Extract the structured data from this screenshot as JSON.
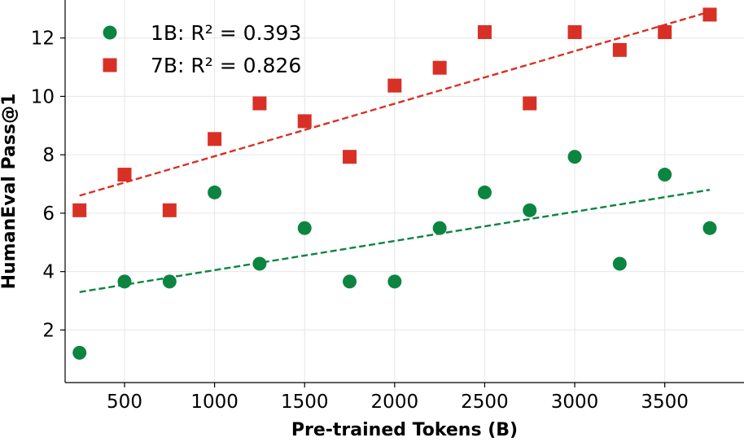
{
  "chart_data": {
    "type": "scatter",
    "title": "",
    "xlabel": "Pre-trained Tokens (B)",
    "ylabel": "HumanEval Pass@1",
    "xlim": [
      170,
      3940
    ],
    "ylim": [
      0.2,
      13.3
    ],
    "xticks": [
      500,
      1000,
      1500,
      2000,
      2500,
      3000,
      3500
    ],
    "yticks": [
      2,
      4,
      6,
      8,
      10,
      12
    ],
    "grid": true,
    "legend_position": "top-left",
    "series": [
      {
        "name": "1B: R² = 0.393",
        "marker": "circle",
        "color": "#0b8540",
        "x": [
          250,
          500,
          750,
          1000,
          1250,
          1500,
          1750,
          2000,
          2250,
          2500,
          2750,
          3000,
          3250,
          3500,
          3750
        ],
        "y": [
          1.22,
          3.66,
          3.66,
          6.71,
          4.27,
          5.49,
          3.66,
          3.66,
          5.49,
          6.71,
          6.1,
          7.93,
          4.27,
          7.32,
          5.49
        ],
        "trend": {
          "x": [
            250,
            3750
          ],
          "y": [
            3.3,
            6.8
          ]
        }
      },
      {
        "name": "7B: R² = 0.826",
        "marker": "square",
        "color": "#d93026",
        "x": [
          250,
          500,
          750,
          1000,
          1250,
          1500,
          1750,
          2000,
          2250,
          2500,
          2750,
          3000,
          3250,
          3500,
          3750
        ],
        "y": [
          6.1,
          7.32,
          6.1,
          8.54,
          9.76,
          9.15,
          7.93,
          10.37,
          10.98,
          12.2,
          9.76,
          12.2,
          11.59,
          12.2,
          12.8
        ],
        "trend": {
          "x": [
            250,
            3750
          ],
          "y": [
            6.6,
            12.9
          ]
        }
      }
    ]
  }
}
